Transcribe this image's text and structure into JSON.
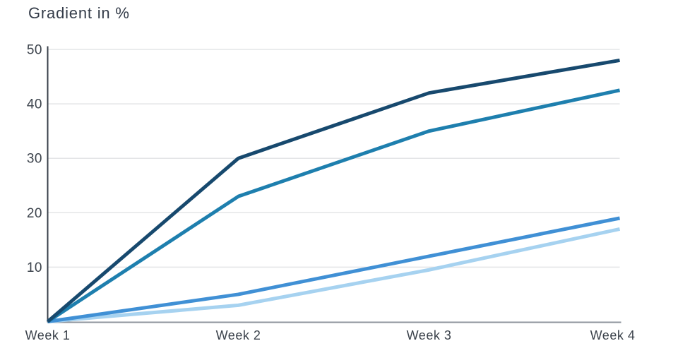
{
  "chart_data": {
    "type": "line",
    "title": "Gradient in %",
    "xlabel": "",
    "ylabel": "Gradient in %",
    "x_categories": [
      "Week 1",
      "Week 2",
      "Week 3",
      "Week 4"
    ],
    "y_ticks": [
      10,
      20,
      30,
      40,
      50
    ],
    "ylim": [
      0,
      50
    ],
    "grid": "horizontal",
    "legend_position": "none",
    "series": [
      {
        "name": "light-blue-line",
        "color": "#a6d2f0",
        "values": [
          0,
          3,
          9.5,
          17
        ]
      },
      {
        "name": "medium-blue-line",
        "color": "#4090d5",
        "values": [
          0,
          5,
          12,
          19
        ]
      },
      {
        "name": "teal-line",
        "color": "#1e7fae",
        "values": [
          0,
          23,
          35,
          42.5
        ]
      },
      {
        "name": "navy-line",
        "color": "#17496e",
        "values": [
          0,
          30,
          42,
          48
        ]
      }
    ],
    "colors": {
      "title_text": "#343c49",
      "tick_text": "#3b424b",
      "gridline": "#e4e5e7",
      "x_axis": "#8e949c",
      "y_axis": "#39404a"
    }
  }
}
